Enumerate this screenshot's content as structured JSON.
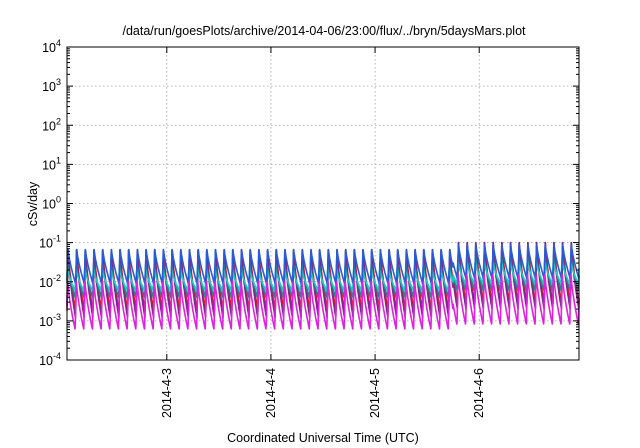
{
  "chart_data": {
    "type": "line",
    "title": "/data/run/goesPlots/archive/2014-04-06/23:00/flux/../bryn/5daysMars.plot",
    "xlabel": "Coordinated Universal Time (UTC)",
    "ylabel": "cSv/day",
    "yscale": "log",
    "ylim": [
      0.0001,
      10000
    ],
    "xlim": [
      "2014-04-02 01:00",
      "2014-04-06 23:00"
    ],
    "grid": true,
    "legend": "none",
    "y_ticks": [
      {
        "base": "10",
        "exp": "-4",
        "value": 0.0001
      },
      {
        "base": "10",
        "exp": "-3",
        "value": 0.001
      },
      {
        "base": "10",
        "exp": "-2",
        "value": 0.01
      },
      {
        "base": "10",
        "exp": "-1",
        "value": 0.1
      },
      {
        "base": "10",
        "exp": "0",
        "value": 1
      },
      {
        "base": "10",
        "exp": "1",
        "value": 10
      },
      {
        "base": "10",
        "exp": "2",
        "value": 100
      },
      {
        "base": "10",
        "exp": "3",
        "value": 1000
      },
      {
        "base": "10",
        "exp": "4",
        "value": 10000
      }
    ],
    "x_ticks": [
      {
        "label": "2014-4-3",
        "value": "2014-04-03 00:00"
      },
      {
        "label": "2014-4-4",
        "value": "2014-04-04 00:00"
      },
      {
        "label": "2014-4-5",
        "value": "2014-04-05 00:00"
      },
      {
        "label": "2014-4-6",
        "value": "2014-04-06 00:00"
      }
    ],
    "orbit_period_hours": 2.0,
    "series": [
      {
        "color": "#e01818",
        "peak": 0.07,
        "trough": 0.0018,
        "late_peak": 0.11,
        "late_trough": 0.0028,
        "phase": 0.0
      },
      {
        "color": "#7a2a8a",
        "peak": 0.065,
        "trough": 0.0012,
        "late_peak": 0.1,
        "late_trough": 0.002,
        "phase": 0.02
      },
      {
        "color": "#1a8a8a",
        "peak": 0.03,
        "trough": 0.004,
        "late_peak": 0.05,
        "late_trough": 0.006,
        "phase": 0.05
      },
      {
        "color": "#20c8c8",
        "peak": 0.022,
        "trough": 0.006,
        "late_peak": 0.035,
        "late_trough": 0.009,
        "phase": 0.08
      },
      {
        "color": "#2a5ad8",
        "peak": 0.075,
        "trough": 0.009,
        "late_peak": 0.1,
        "late_trough": 0.012,
        "phase": 0.01
      },
      {
        "color": "#e020e0",
        "peak": 0.012,
        "trough": 0.0006,
        "late_peak": 0.018,
        "late_trough": 0.0008,
        "phase": 0.06
      }
    ]
  }
}
